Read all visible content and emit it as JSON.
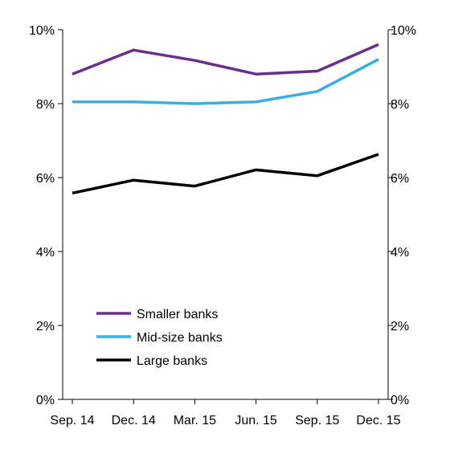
{
  "chart_data": {
    "type": "line",
    "categories": [
      "Sep. 14",
      "Dec. 14",
      "Mar. 15",
      "Jun. 15",
      "Sep. 15",
      "Dec. 15"
    ],
    "series": [
      {
        "name": "Smaller banks",
        "color": "#6b2e8a",
        "values": [
          8.8,
          9.45,
          9.17,
          8.8,
          8.88,
          9.6
        ]
      },
      {
        "name": "Mid-size banks",
        "color": "#3aaee0",
        "values": [
          8.05,
          8.05,
          8.0,
          8.05,
          8.33,
          9.2
        ]
      },
      {
        "name": "Large banks",
        "color": "#000000",
        "values": [
          5.58,
          5.93,
          5.77,
          6.21,
          6.05,
          6.63
        ]
      }
    ],
    "ylim": [
      0,
      10
    ],
    "yticks": [
      0,
      2,
      4,
      6,
      8,
      10
    ],
    "ytick_labels": [
      "0%",
      "2%",
      "4%",
      "6%",
      "8%",
      "10%"
    ],
    "title": "",
    "xlabel": "",
    "ylabel": "",
    "legend_position": "bottom-left",
    "grid": false
  }
}
